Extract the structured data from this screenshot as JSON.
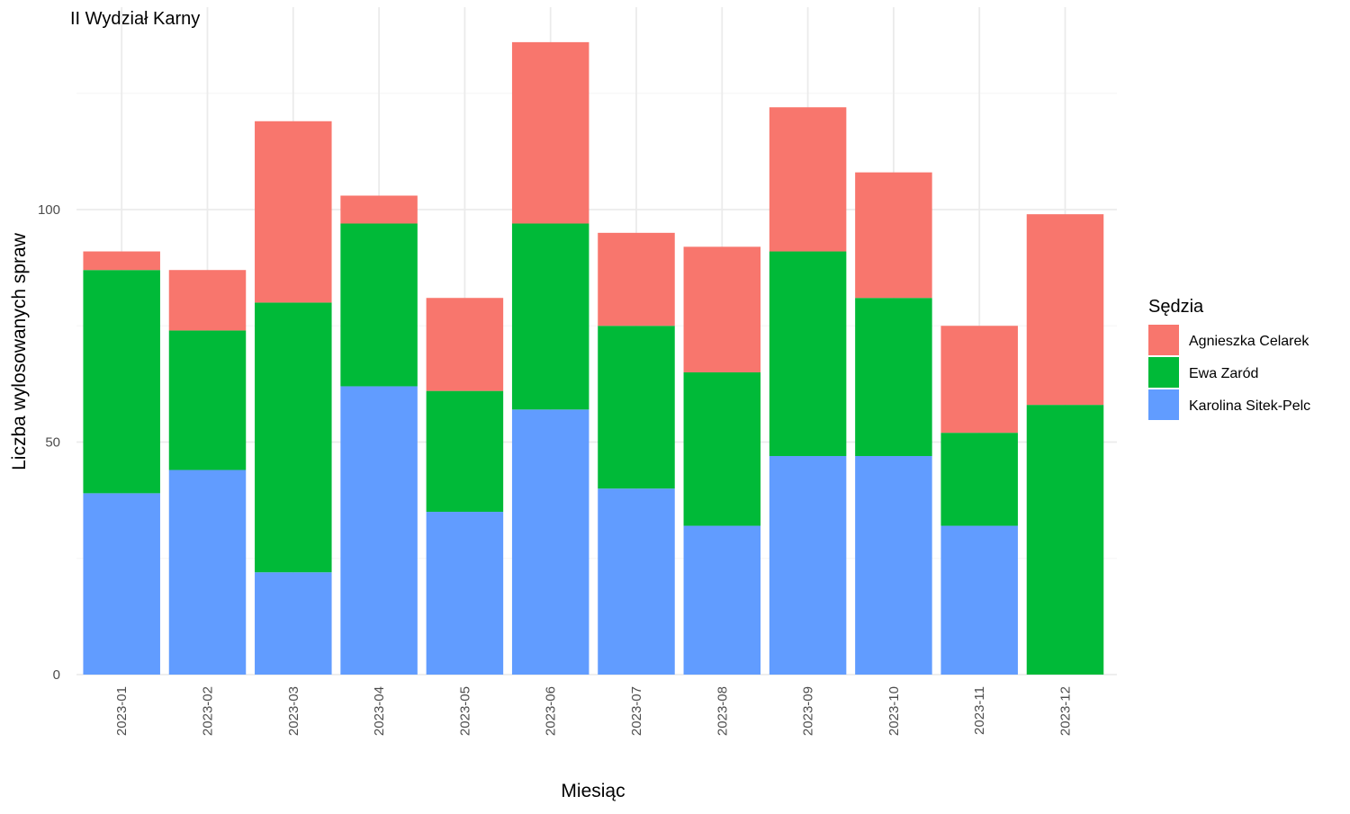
{
  "chart_data": {
    "type": "bar",
    "stacked": true,
    "title": "II Wydział Karny",
    "xlabel": "Miesiąc",
    "ylabel": "Liczba wylosowanych spraw",
    "ylim": [
      0,
      136
    ],
    "yticks": [
      0,
      50,
      100
    ],
    "ytick_labels": [
      "0",
      "50",
      "100"
    ],
    "grid": true,
    "legend": {
      "title": "Sędzia",
      "position": "right"
    },
    "categories": [
      "2023-01",
      "2023-02",
      "2023-03",
      "2023-04",
      "2023-05",
      "2023-06",
      "2023-07",
      "2023-08",
      "2023-09",
      "2023-10",
      "2023-11",
      "2023-12"
    ],
    "series": [
      {
        "name": "Karolina Sitek-Pelc",
        "color": "#619CFF",
        "values": [
          39,
          44,
          22,
          62,
          35,
          57,
          40,
          32,
          47,
          47,
          32,
          0
        ]
      },
      {
        "name": "Ewa Zaród",
        "color": "#00BA38",
        "values": [
          48,
          30,
          58,
          35,
          26,
          40,
          35,
          33,
          44,
          34,
          20,
          58
        ]
      },
      {
        "name": "Agnieszka Celarek",
        "color": "#F8766D",
        "values": [
          4,
          13,
          39,
          6,
          20,
          39,
          20,
          27,
          31,
          27,
          23,
          41
        ]
      }
    ],
    "legend_order": [
      "Agnieszka Celarek",
      "Ewa Zaród",
      "Karolina Sitek-Pelc"
    ]
  }
}
